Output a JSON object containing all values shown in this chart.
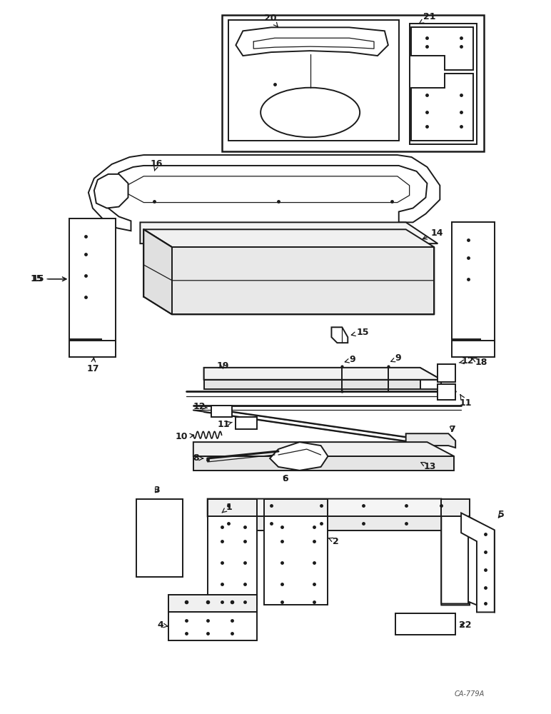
{
  "bg_color": "#ffffff",
  "line_color": "#1a1a1a",
  "fig_width": 7.72,
  "fig_height": 10.0,
  "dpi": 100,
  "watermark": "CA-779A"
}
